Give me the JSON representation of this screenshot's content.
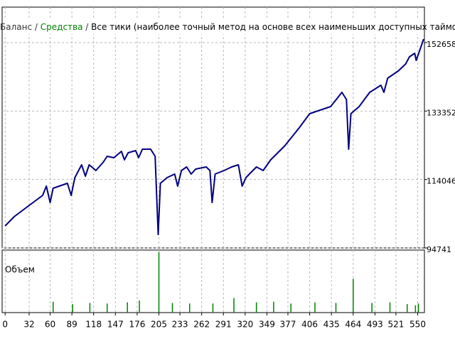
{
  "chart_data": [
    {
      "type": "line",
      "separator": "/",
      "series": [
        {
          "name": "Баланс",
          "color": "#000080",
          "label_color": "#333333",
          "x": [
            0,
            12,
            31,
            50,
            55,
            60,
            64,
            83,
            88,
            93,
            102,
            107,
            112,
            121,
            131,
            136,
            145,
            155,
            159,
            164,
            174,
            178,
            183,
            194,
            200,
            204,
            207,
            216,
            226,
            230,
            235,
            242,
            248,
            254,
            268,
            273,
            276,
            280,
            292,
            302,
            311,
            316,
            321,
            335,
            344,
            354,
            373,
            392,
            406,
            420,
            434,
            449,
            455,
            458,
            461,
            472,
            486,
            501,
            505,
            510,
            524,
            534,
            539,
            546,
            548,
            553,
            558
          ],
          "values": [
            100950,
            103560,
            106570,
            109570,
            112180,
            107570,
            111575,
            112980,
            109570,
            114580,
            118190,
            114980,
            118190,
            116585,
            118990,
            120590,
            120190,
            121995,
            119590,
            121595,
            122195,
            120190,
            122595,
            122595,
            120590,
            98550,
            112980,
            114580,
            115580,
            112180,
            116585,
            117585,
            115580,
            116985,
            117585,
            116585,
            107570,
            115580,
            116585,
            117585,
            118190,
            112180,
            114580,
            117585,
            116585,
            119590,
            123600,
            128610,
            132615,
            133620,
            134620,
            138630,
            136625,
            122595,
            132615,
            134620,
            138630,
            140635,
            138630,
            142640,
            144640,
            146645,
            148650,
            149650,
            147645,
            150655,
            153660
          ]
        }
      ],
      "equity_label": {
        "text": "Средства",
        "color": "#008000"
      },
      "subtitle": "Все тики (наиболее точный метод на основе всех наименьших доступных таймфреймов для генерации каждо",
      "xlim": [
        -4,
        559
      ],
      "ylim": [
        94741,
        162678
      ],
      "yticks": [
        94741,
        114046,
        133352,
        152658
      ],
      "grid": true
    },
    {
      "type": "bar",
      "title": "Объем",
      "color": "#008000",
      "x": [
        64,
        90,
        113,
        136,
        163,
        179,
        205,
        223,
        246,
        277,
        305,
        335,
        358,
        381,
        413,
        441,
        464,
        489,
        513,
        536,
        547,
        551
      ],
      "values": [
        18,
        14,
        16,
        15,
        17,
        20,
        100,
        16,
        15,
        15,
        24,
        17,
        18,
        15,
        17,
        16,
        56,
        16,
        17,
        14,
        12,
        15
      ],
      "xlim": [
        -4,
        559
      ],
      "ylim": [
        0,
        100
      ],
      "xticks": [
        0,
        32,
        60,
        89,
        118,
        147,
        176,
        205,
        233,
        262,
        291,
        320,
        349,
        377,
        406,
        435,
        464,
        493,
        521,
        550
      ]
    }
  ]
}
